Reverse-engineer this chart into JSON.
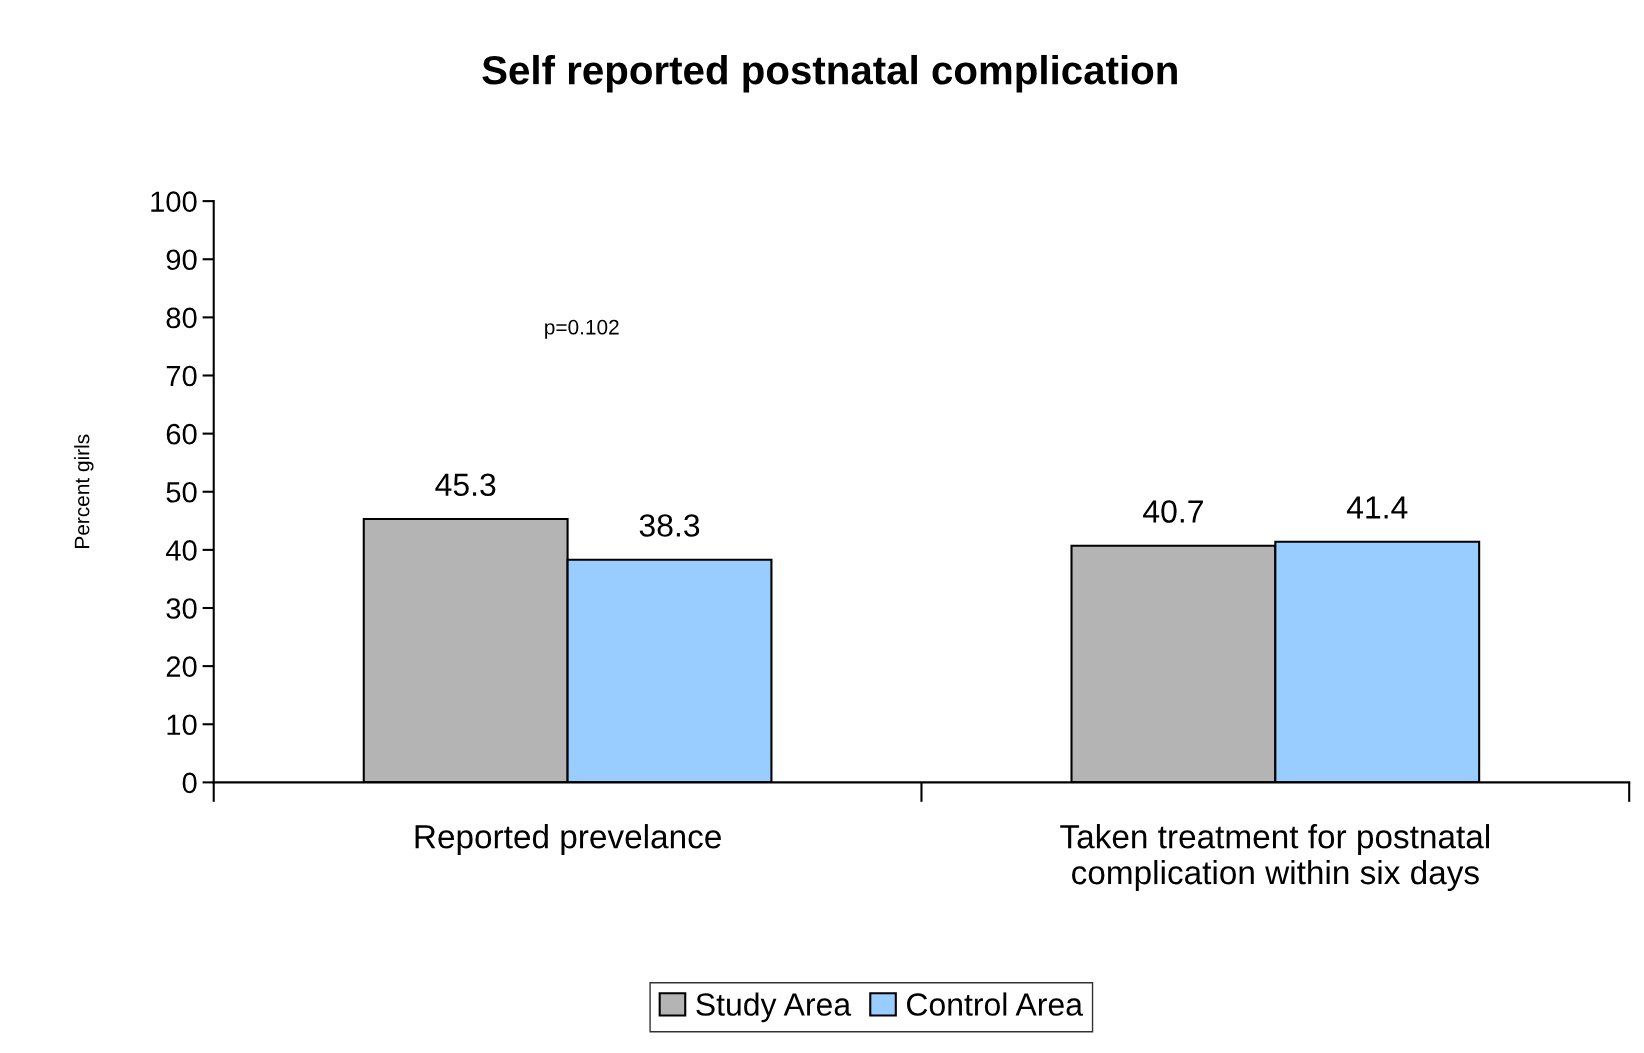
{
  "chart_data": {
    "type": "bar",
    "title": "Self reported postnatal complication",
    "ylabel": "Percent girls",
    "categories": [
      "Reported prevelance",
      "Taken treatment for postnatal\ncomplication within six days"
    ],
    "series": [
      {
        "name": "Study Area",
        "color": "#b4b4b4",
        "values": [
          45.3,
          40.7
        ]
      },
      {
        "name": "Control Area",
        "color": "#99ccff",
        "values": [
          38.3,
          41.4
        ]
      }
    ],
    "ylim": [
      0,
      100
    ],
    "yticks": [
      0,
      10,
      20,
      30,
      40,
      50,
      60,
      70,
      80,
      90,
      100
    ],
    "annotations": [
      "p=0.102"
    ],
    "data_labels": true,
    "grid": false,
    "legend": "bottom"
  }
}
